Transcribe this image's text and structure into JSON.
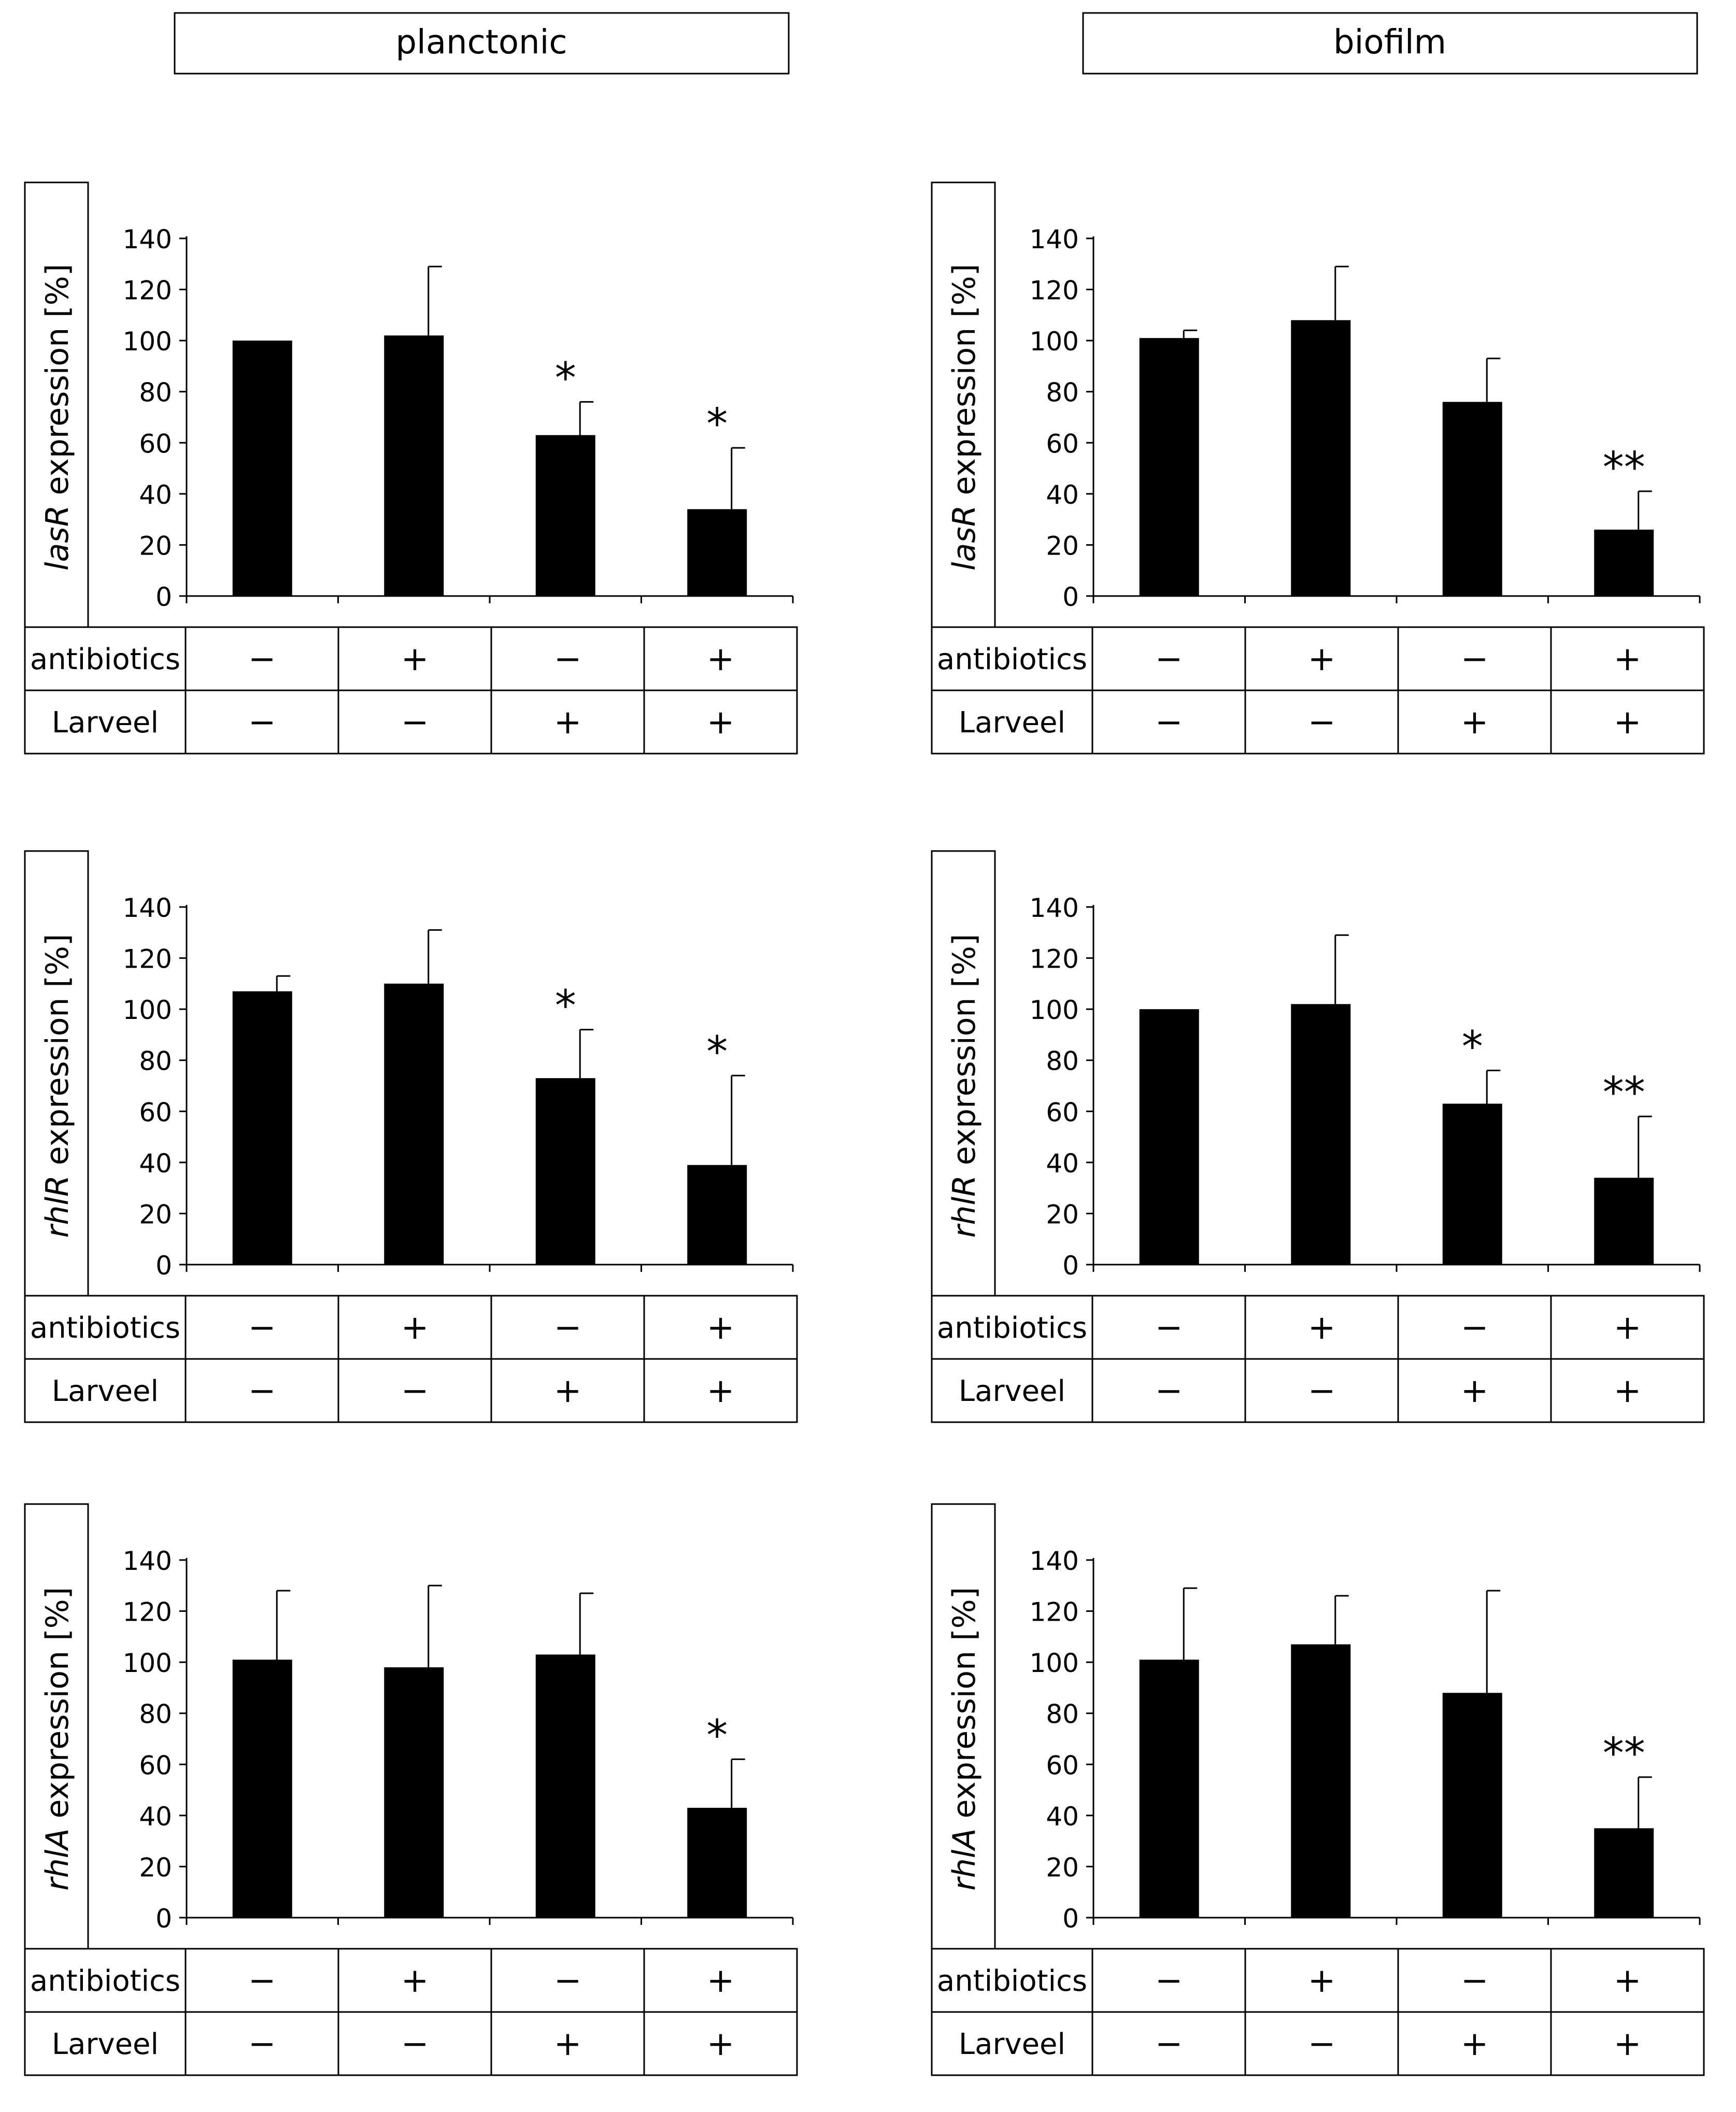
{
  "columns": [
    {
      "id": "planktonic",
      "label": "planctonic"
    },
    {
      "id": "biofilm",
      "label": "biofilm"
    }
  ],
  "conditions": {
    "row_labels": [
      "antibiotics",
      "Larveel"
    ],
    "antibiotics": [
      "−",
      "+",
      "−",
      "+"
    ],
    "larveel": [
      "−",
      "−",
      "+",
      "+"
    ]
  },
  "chart_data": [
    {
      "type": "bar",
      "panel": "planktonic",
      "gene": "lasR",
      "ylabel_suffix": " expression [%]",
      "ylim": [
        0,
        140
      ],
      "yticks": [
        0,
        20,
        40,
        60,
        80,
        100,
        120,
        140
      ],
      "values": [
        100,
        102,
        63,
        34
      ],
      "errors": [
        0,
        27,
        13,
        24
      ],
      "significance": [
        "",
        "",
        "*",
        "*"
      ]
    },
    {
      "type": "bar",
      "panel": "biofilm",
      "gene": "lasR",
      "ylabel_suffix": " expression [%]",
      "ylim": [
        0,
        140
      ],
      "yticks": [
        0,
        20,
        40,
        60,
        80,
        100,
        120,
        140
      ],
      "values": [
        101,
        108,
        76,
        26
      ],
      "errors": [
        3,
        21,
        17,
        15
      ],
      "significance": [
        "",
        "",
        "",
        "**"
      ]
    },
    {
      "type": "bar",
      "panel": "planktonic",
      "gene": "rhlR",
      "ylabel_suffix": " expression [%]",
      "ylim": [
        0,
        140
      ],
      "yticks": [
        0,
        20,
        40,
        60,
        80,
        100,
        120,
        140
      ],
      "values": [
        107,
        110,
        73,
        39
      ],
      "errors": [
        6,
        21,
        19,
        35
      ],
      "significance": [
        "",
        "",
        "*",
        "*"
      ]
    },
    {
      "type": "bar",
      "panel": "biofilm",
      "gene": "rhlR",
      "ylabel_suffix": " expression [%]",
      "ylim": [
        0,
        140
      ],
      "yticks": [
        0,
        20,
        40,
        60,
        80,
        100,
        120,
        140
      ],
      "values": [
        100,
        102,
        63,
        34
      ],
      "errors": [
        0,
        27,
        13,
        24
      ],
      "significance": [
        "",
        "",
        "*",
        "**"
      ]
    },
    {
      "type": "bar",
      "panel": "planktonic",
      "gene": "rhlA",
      "ylabel_suffix": " expression [%]",
      "ylim": [
        0,
        140
      ],
      "yticks": [
        0,
        20,
        40,
        60,
        80,
        100,
        120,
        140
      ],
      "values": [
        101,
        98,
        103,
        43
      ],
      "errors": [
        27,
        32,
        24,
        19
      ],
      "significance": [
        "",
        "",
        "",
        "*"
      ]
    },
    {
      "type": "bar",
      "panel": "biofilm",
      "gene": "rhlA",
      "ylabel_suffix": " expression [%]",
      "ylim": [
        0,
        140
      ],
      "yticks": [
        0,
        20,
        40,
        60,
        80,
        100,
        120,
        140
      ],
      "values": [
        101,
        107,
        88,
        35
      ],
      "errors": [
        28,
        19,
        40,
        20
      ],
      "significance": [
        "",
        "",
        "",
        "**"
      ]
    }
  ]
}
